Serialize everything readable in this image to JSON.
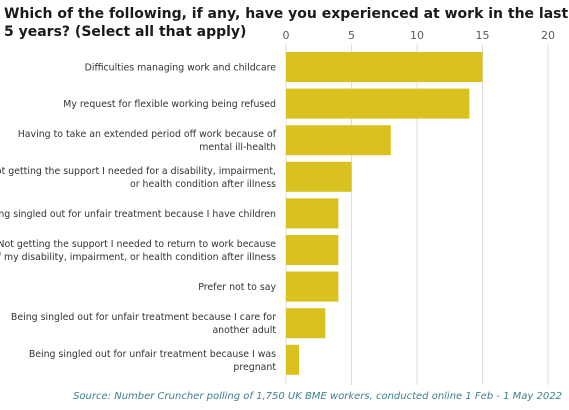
{
  "title_lines": [
    "Which of the following, if any, have you experienced at work in the last",
    "5 years? (Select all that apply)"
  ],
  "source": "Source: Number Cruncher polling of 1,750 UK BME workers, conducted online 1 Feb - 1 May 2022",
  "colors": {
    "bar": "#d9c11e",
    "grid": "#dddddd",
    "axis_text": "#595959",
    "label_text": "#333333"
  },
  "chart_data": {
    "type": "bar",
    "orientation": "horizontal",
    "categories": [
      [
        "Difficulties managing work and childcare"
      ],
      [
        "My request for flexible working being refused"
      ],
      [
        "Having to take an extended period off work because of",
        "mental ill-health"
      ],
      [
        "Not getting the support I needed for a disability, impairment,",
        "or health condition after illness"
      ],
      [
        "Being singled out for unfair treatment because I have children"
      ],
      [
        "Not getting the support I needed to return to work because",
        "of my disability, impairment, or health condition after illness"
      ],
      [
        "Prefer not to say"
      ],
      [
        "Being singled out for unfair treatment because I care for",
        "another adult"
      ],
      [
        "Being singled out for unfair treatment because I was",
        "pregnant"
      ]
    ],
    "values": [
      15,
      14,
      8,
      5,
      4,
      4,
      4,
      3,
      1
    ],
    "xlim": [
      0,
      20
    ],
    "xticks": [
      "0",
      "5",
      "10",
      "15",
      "20"
    ],
    "tick_values": [
      0,
      5,
      10,
      15,
      20
    ],
    "xaxis_position": "top",
    "grid": true,
    "title": "",
    "xlabel": "",
    "ylabel": ""
  }
}
